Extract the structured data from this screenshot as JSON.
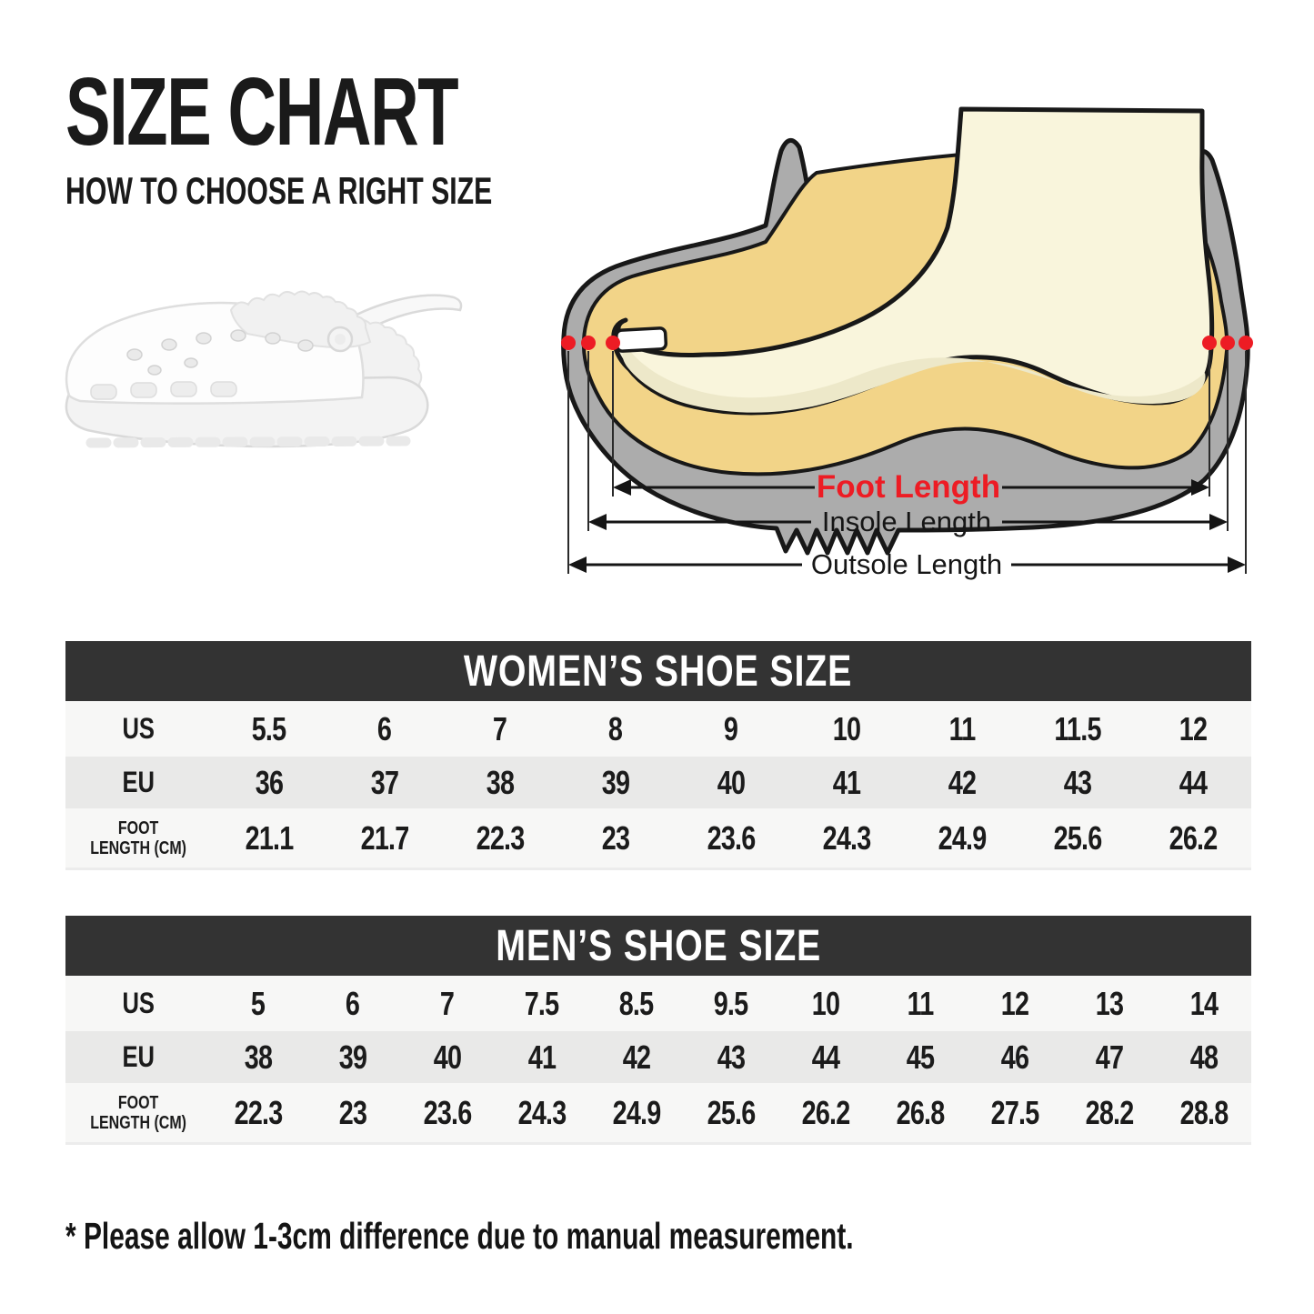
{
  "header": {
    "title": "SIZE CHART",
    "subtitle": "HOW TO CHOOSE A RIGHT SIZE"
  },
  "diagram": {
    "foot_length_label": "Foot Length",
    "insole_length_label": "Insole Length",
    "outsole_length_label": "Outsole Length",
    "product_image": "white-fur-lined-clog",
    "colors": {
      "accent_red": "#ED1C24",
      "sole_gray": "#ACACAC",
      "lining_yellow": "#F2D488",
      "foot_cream": "#F9F5DC",
      "foot_shade": "#EDE8C9",
      "outline_black": "#181818"
    }
  },
  "tables": {
    "women": {
      "title": "WOMEN’S SHOE SIZE",
      "rows": [
        {
          "label": "US",
          "values": [
            "5.5",
            "6",
            "7",
            "8",
            "9",
            "10",
            "11",
            "11.5",
            "12"
          ]
        },
        {
          "label": "EU",
          "values": [
            "36",
            "37",
            "38",
            "39",
            "40",
            "41",
            "42",
            "43",
            "44"
          ]
        },
        {
          "label": "FOOT LENGTH (CM)",
          "label_lines": [
            "FOOT",
            "LENGTH (CM)"
          ],
          "values": [
            "21.1",
            "21.7",
            "22.3",
            "23",
            "23.6",
            "24.3",
            "24.9",
            "25.6",
            "26.2"
          ]
        }
      ]
    },
    "men": {
      "title": "MEN’S SHOE SIZE",
      "rows": [
        {
          "label": "US",
          "values": [
            "5",
            "6",
            "7",
            "7.5",
            "8.5",
            "9.5",
            "10",
            "11",
            "12",
            "13",
            "14"
          ]
        },
        {
          "label": "EU",
          "values": [
            "38",
            "39",
            "40",
            "41",
            "42",
            "43",
            "44",
            "45",
            "46",
            "47",
            "48"
          ]
        },
        {
          "label": "FOOT LENGTH (CM)",
          "label_lines": [
            "FOOT",
            "LENGTH (CM)"
          ],
          "values": [
            "22.3",
            "23",
            "23.6",
            "24.3",
            "24.9",
            "25.6",
            "26.2",
            "26.8",
            "27.5",
            "28.2",
            "28.8"
          ]
        }
      ]
    },
    "style": {
      "header_bg": "#333333",
      "row_light": "#F7F7F6",
      "row_alt": "#E9E9E8"
    }
  },
  "footnote": "* Please allow 1-3cm difference due to manual measurement."
}
